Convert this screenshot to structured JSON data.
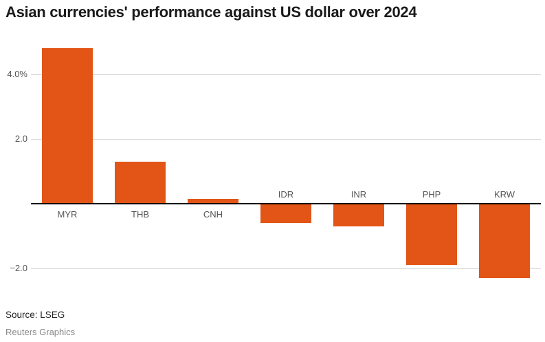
{
  "title": "Asian currencies' performance against US dollar over 2024",
  "source": "Source: LSEG",
  "credit": "Reuters Graphics",
  "colors": {
    "bar": "#e25516",
    "gridline": "#d9d9d9",
    "zero_line": "#000000",
    "title_text": "#1a1a1a",
    "axis_text": "#555555",
    "source_text": "#222222",
    "credit_text": "#888888"
  },
  "chart_data": {
    "type": "bar",
    "title": "Asian currencies' performance against US dollar over 2024",
    "categories": [
      "MYR",
      "THB",
      "CNH",
      "IDR",
      "INR",
      "PHP",
      "KRW"
    ],
    "values": [
      4.8,
      1.3,
      0.15,
      -0.6,
      -0.7,
      -1.9,
      -2.3
    ],
    "unit": "%",
    "xlabel": "",
    "ylabel": "",
    "ylim": [
      -2.6,
      4.95
    ],
    "yticks": [
      {
        "value": 4.0,
        "label": "4.0%"
      },
      {
        "value": 2.0,
        "label": "2.0"
      },
      {
        "value": -2.0,
        "label": "−2.0"
      }
    ],
    "zero_baseline": true,
    "grid": true,
    "legend": false,
    "bar_label_position": "opposite-side-of-axis"
  }
}
